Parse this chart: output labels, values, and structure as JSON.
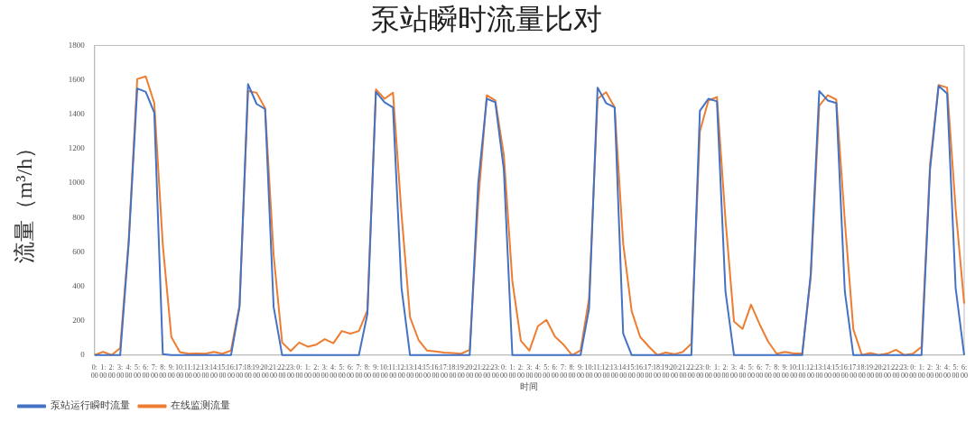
{
  "chart_data": {
    "type": "line",
    "title": "泵站瞬时流量比对",
    "xlabel": "时间",
    "ylabel": "流量（m³/h）",
    "categories": [
      "0:00",
      "1:00",
      "2:00",
      "3:00",
      "4:00",
      "5:00",
      "6:00",
      "7:00",
      "8:00",
      "9:00",
      "10:00",
      "11:00",
      "12:00",
      "13:00",
      "14:00",
      "15:00",
      "16:00",
      "17:00",
      "18:00",
      "19:00",
      "20:00",
      "21:00",
      "22:00",
      "23:00",
      "0:00",
      "1:00",
      "2:00",
      "3:00",
      "4:00",
      "5:00",
      "6:00",
      "7:00",
      "8:00",
      "9:00",
      "10:00",
      "11:00",
      "12:00",
      "13:00",
      "14:00",
      "15:00",
      "16:00",
      "17:00",
      "18:00",
      "19:00",
      "20:00",
      "21:00",
      "22:00",
      "23:00",
      "0:00",
      "1:00",
      "2:00",
      "3:00",
      "4:00",
      "5:00",
      "6:00",
      "7:00",
      "8:00",
      "9:00",
      "10:00",
      "11:00",
      "12:00",
      "13:00",
      "14:00",
      "15:00",
      "16:00",
      "17:00",
      "18:00",
      "19:00",
      "20:00",
      "21:00",
      "22:00",
      "23:00",
      "0:00",
      "1:00",
      "2:00",
      "3:00",
      "4:00",
      "5:00",
      "6:00",
      "7:00",
      "8:00",
      "9:00",
      "10:00",
      "11:00",
      "12:00",
      "13:00",
      "14:00",
      "15:00",
      "16:00",
      "17:00",
      "18:00",
      "19:00",
      "20:00",
      "21:00",
      "22:00",
      "23:00",
      "0:00",
      "1:00",
      "2:00",
      "3:00",
      "4:00",
      "5:00",
      "6:00"
    ],
    "series": [
      {
        "name": "泵站运行瞬时流量",
        "color": "#4472c4",
        "values": [
          0,
          0,
          0,
          0,
          650,
          1550,
          1530,
          1410,
          5,
          0,
          0,
          0,
          0,
          0,
          0,
          0,
          0,
          280,
          1575,
          1460,
          1430,
          280,
          0,
          0,
          0,
          0,
          0,
          0,
          0,
          0,
          0,
          0,
          240,
          1530,
          1470,
          1440,
          390,
          0,
          0,
          0,
          0,
          0,
          0,
          0,
          0,
          1000,
          1490,
          1470,
          1080,
          0,
          0,
          0,
          0,
          0,
          0,
          0,
          0,
          0,
          270,
          1555,
          1465,
          1440,
          125,
          0,
          0,
          0,
          0,
          0,
          0,
          0,
          0,
          1420,
          1490,
          1475,
          370,
          0,
          0,
          0,
          0,
          0,
          0,
          0,
          0,
          0,
          470,
          1535,
          1480,
          1465,
          370,
          0,
          0,
          0,
          0,
          0,
          0,
          0,
          0,
          0,
          1080,
          1565,
          1520,
          390,
          0
        ]
      },
      {
        "name": "在线监测流量",
        "color": "#ed7d31",
        "values": [
          0,
          19,
          0,
          41,
          670,
          1605,
          1620,
          1465,
          640,
          105,
          17,
          8,
          9,
          8,
          19,
          8,
          27,
          290,
          1535,
          1525,
          1435,
          580,
          73,
          24,
          73,
          49,
          61,
          93,
          69,
          140,
          125,
          140,
          260,
          1545,
          1490,
          1525,
          820,
          220,
          88,
          26,
          21,
          15,
          12,
          8,
          31,
          890,
          1510,
          1480,
          1165,
          430,
          84,
          26,
          168,
          205,
          108,
          61,
          0,
          27,
          330,
          1490,
          1528,
          1440,
          650,
          255,
          105,
          50,
          0,
          15,
          5,
          19,
          66,
          1300,
          1480,
          1500,
          790,
          195,
          152,
          293,
          180,
          79,
          8,
          19,
          10,
          9,
          450,
          1450,
          1510,
          1485,
          780,
          150,
          0,
          12,
          0,
          9,
          31,
          0,
          8,
          48,
          1110,
          1570,
          1555,
          850,
          300
        ]
      }
    ],
    "ylim": [
      0,
      1800
    ],
    "yticks": [
      0,
      200,
      400,
      600,
      800,
      1000,
      1200,
      1400,
      1600,
      1800
    ],
    "grid": false,
    "legend": "bottom",
    "marker": "none",
    "line_style": "solid"
  }
}
